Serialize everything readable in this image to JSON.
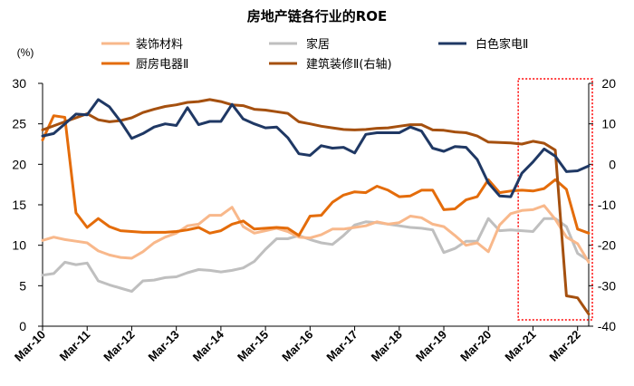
{
  "chart_data": {
    "type": "line",
    "title": "房地产链各行业的ROE",
    "left_unit": "(%)",
    "x": [
      "Mar-10",
      "Jun-10",
      "Sep-10",
      "Dec-10",
      "Mar-11",
      "Jun-11",
      "Sep-11",
      "Dec-11",
      "Mar-12",
      "Jun-12",
      "Sep-12",
      "Dec-12",
      "Mar-13",
      "Jun-13",
      "Sep-13",
      "Dec-13",
      "Mar-14",
      "Jun-14",
      "Sep-14",
      "Dec-14",
      "Mar-15",
      "Jun-15",
      "Sep-15",
      "Dec-15",
      "Mar-16",
      "Jun-16",
      "Sep-16",
      "Dec-16",
      "Mar-17",
      "Jun-17",
      "Sep-17",
      "Dec-17",
      "Mar-18",
      "Jun-18",
      "Sep-18",
      "Dec-18",
      "Mar-19",
      "Jun-19",
      "Sep-19",
      "Dec-19",
      "Mar-20",
      "Jun-20",
      "Sep-20",
      "Dec-20",
      "Mar-21",
      "Jun-21",
      "Sep-21",
      "Dec-21",
      "Mar-22",
      "Jun-22"
    ],
    "x_tick_labels": [
      "Mar-10",
      "Mar-11",
      "Mar-12",
      "Mar-13",
      "Mar-14",
      "Mar-15",
      "Mar-16",
      "Mar-17",
      "Mar-18",
      "Mar-19",
      "Mar-20",
      "Mar-21",
      "Mar-22"
    ],
    "ylim_left": [
      0,
      30
    ],
    "yticks_left": [
      0,
      5,
      10,
      15,
      20,
      25,
      30
    ],
    "ylim_right": [
      -40,
      20
    ],
    "yticks_right": [
      -40,
      -30,
      -20,
      -10,
      0,
      10,
      20
    ],
    "grid": false,
    "legend_position": "top",
    "highlight_box": {
      "from": "Dec-20",
      "to": "Jun-22",
      "style": "red dotted"
    },
    "series": [
      {
        "name": "装饰材料",
        "axis": "left",
        "color": "#F8B88B",
        "values": [
          10.6,
          11.0,
          10.7,
          10.5,
          10.3,
          9.3,
          8.8,
          8.5,
          8.4,
          9.2,
          10.3,
          11.0,
          11.5,
          12.4,
          12.6,
          13.7,
          13.7,
          14.7,
          12.3,
          11.5,
          11.8,
          12.1,
          11.7,
          11.0,
          10.9,
          11.3,
          12.0,
          12.0,
          12.2,
          12.4,
          12.9,
          12.6,
          12.8,
          13.6,
          13.4,
          12.6,
          12.3,
          11.2,
          10.0,
          10.3,
          9.2,
          12.5,
          13.9,
          14.3,
          14.4,
          14.9,
          13.2,
          11.0,
          10.2,
          7.9
        ]
      },
      {
        "name": "家居",
        "axis": "left",
        "color": "#BFBFBF",
        "values": [
          6.3,
          6.5,
          7.9,
          7.6,
          7.8,
          5.6,
          5.1,
          4.7,
          4.3,
          5.6,
          5.7,
          6.0,
          6.1,
          6.6,
          7.0,
          6.9,
          6.7,
          6.9,
          7.2,
          8.0,
          9.5,
          10.8,
          10.8,
          11.2,
          10.7,
          10.3,
          10.1,
          11.2,
          12.5,
          12.9,
          12.8,
          12.6,
          12.4,
          12.2,
          12.1,
          11.9,
          9.1,
          9.6,
          10.5,
          10.5,
          13.3,
          11.8,
          11.9,
          11.8,
          11.7,
          13.3,
          13.3,
          12.3,
          9.0,
          8.1
        ]
      },
      {
        "name": "白色家电Ⅱ",
        "axis": "left",
        "color": "#1F3864",
        "values": [
          23.5,
          23.8,
          25.0,
          26.2,
          26.1,
          28.0,
          27.1,
          25.3,
          23.2,
          23.8,
          24.6,
          25.0,
          24.8,
          27.0,
          24.9,
          25.3,
          25.3,
          27.4,
          25.6,
          25.0,
          24.5,
          24.6,
          23.3,
          21.3,
          21.1,
          22.3,
          22.0,
          22.1,
          21.4,
          23.7,
          23.9,
          23.9,
          23.9,
          24.6,
          24.1,
          22.0,
          21.6,
          22.2,
          22.1,
          20.6,
          17.7,
          16.1,
          16.0,
          18.9,
          20.3,
          21.9,
          21.0,
          19.1,
          19.2,
          19.8
        ]
      },
      {
        "name": "厨房电器Ⅱ",
        "axis": "left",
        "color": "#E46C0A",
        "values": [
          23.0,
          26.0,
          25.8,
          14.0,
          12.2,
          13.3,
          12.3,
          11.8,
          11.7,
          11.6,
          11.6,
          11.6,
          11.7,
          11.9,
          12.2,
          11.5,
          11.8,
          12.6,
          13.0,
          12.0,
          12.1,
          12.2,
          12.1,
          11.2,
          13.6,
          13.7,
          15.3,
          16.2,
          16.6,
          16.5,
          17.3,
          16.8,
          16.0,
          16.1,
          16.8,
          16.8,
          14.4,
          14.5,
          15.6,
          16.0,
          18.1,
          16.5,
          16.7,
          16.8,
          16.7,
          17.0,
          18.1,
          16.9,
          12.0,
          11.5
        ]
      },
      {
        "name": "建筑装修Ⅱ(右轴)",
        "axis": "right",
        "color": "#A5500F",
        "values": [
          8.5,
          9.5,
          10.5,
          11.5,
          12.5,
          11.0,
          10.5,
          10.8,
          11.5,
          12.8,
          13.6,
          14.3,
          14.7,
          15.3,
          15.5,
          16.0,
          15.5,
          14.7,
          14.5,
          13.6,
          13.4,
          13.0,
          12.6,
          10.5,
          10.0,
          9.4,
          9.0,
          8.6,
          8.5,
          8.6,
          8.9,
          9.0,
          9.4,
          9.8,
          9.8,
          8.5,
          8.4,
          8.0,
          7.8,
          7.0,
          5.5,
          5.4,
          5.3,
          5.0,
          5.7,
          5.2,
          3.5,
          -32.5,
          -33.0,
          -37.0
        ]
      }
    ]
  },
  "legend": [
    {
      "label": "装饰材料",
      "color": "#F8B88B"
    },
    {
      "label": "家居",
      "color": "#BFBFBF"
    },
    {
      "label": "白色家电Ⅱ",
      "color": "#1F3864"
    },
    {
      "label": "厨房电器Ⅱ",
      "color": "#E46C0A"
    },
    {
      "label": "建筑装修Ⅱ(右轴)",
      "color": "#A5500F"
    }
  ],
  "colors": {
    "highlight": "#FF0000",
    "axis": "#000000"
  }
}
